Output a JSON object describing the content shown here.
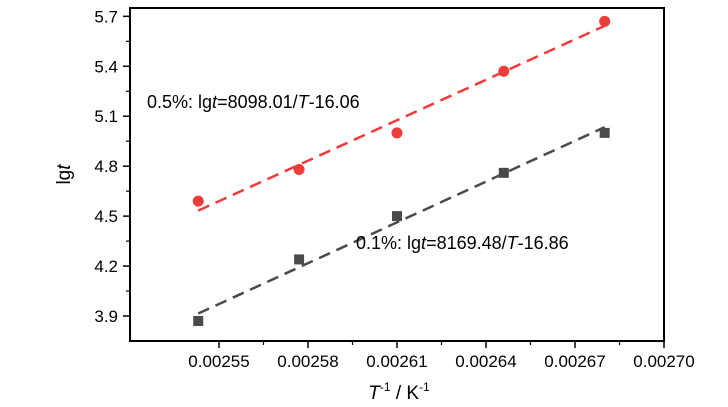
{
  "chart_data": {
    "type": "scatter",
    "xlabel": {
      "base": "T",
      "base_sup": "-1",
      "sep": " / K",
      "unit_sup": "-1"
    },
    "ylabel": {
      "plain": "lg",
      "italic": "t"
    },
    "xlim": [
      0.00252,
      0.0027
    ],
    "ylim": [
      3.75,
      5.75
    ],
    "x_ticks": [
      0.00255,
      0.00258,
      0.00261,
      0.00264,
      0.00267,
      0.0027
    ],
    "x_tick_labels": [
      "0.00255",
      "0.00258",
      "0.00261",
      "0.00264",
      "0.00267",
      "0.00270"
    ],
    "y_ticks": [
      3.9,
      4.2,
      4.5,
      4.8,
      5.1,
      5.4,
      5.7
    ],
    "y_tick_labels": [
      "3.9",
      "4.2",
      "4.5",
      "4.8",
      "5.1",
      "5.4",
      "5.7"
    ],
    "grid": false,
    "series": [
      {
        "marker": "circle",
        "color": "#ee3b3b",
        "x": [
          0.002543,
          0.002577,
          0.00261,
          0.002646,
          0.00268
        ],
        "y": [
          4.59,
          4.78,
          5.0,
          5.37,
          5.67
        ],
        "fit": {
          "slope": 8098.01,
          "intercept": -16.06,
          "x_range": [
            0.002543,
            0.00268
          ]
        },
        "annotation": {
          "prefix": "0.5%: lg",
          "t": "t",
          "eq": "=8098.01/",
          "T": "T",
          "const": "-16.06"
        }
      },
      {
        "marker": "square",
        "color": "#4a4a4a",
        "x": [
          0.002543,
          0.002577,
          0.00261,
          0.002646,
          0.00268
        ],
        "y": [
          3.87,
          4.24,
          4.5,
          4.76,
          5.0
        ],
        "fit": {
          "slope": 8169.48,
          "intercept": -16.86,
          "x_range": [
            0.002543,
            0.00268
          ]
        },
        "annotation": {
          "prefix": "0.1%: lg",
          "t": "t",
          "eq": "=8169.48/",
          "T": "T",
          "const": "-16.86"
        }
      }
    ]
  }
}
